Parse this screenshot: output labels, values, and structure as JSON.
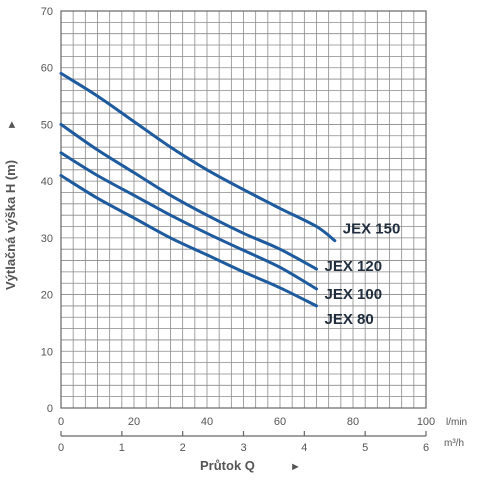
{
  "chart_data": {
    "type": "line",
    "ylabel": "Výtlačná výška H (m)",
    "xlabel": "Průtok Q",
    "y_arrow": "►",
    "x_arrow": "►",
    "ylim": [
      0,
      70
    ],
    "xlim": [
      0,
      100
    ],
    "y_ticks": [
      0,
      10,
      20,
      30,
      40,
      50,
      60,
      70
    ],
    "x_ticks_lmin": [
      0,
      20,
      40,
      60,
      80,
      100
    ],
    "x_unit_lmin": "l/min",
    "x_ticks_m3h": [
      0,
      1,
      2,
      3,
      4,
      5,
      6
    ],
    "x_unit_m3h": "m³/h",
    "grid": true,
    "series": [
      {
        "name": "JEX 150",
        "x": [
          0,
          10,
          20,
          30,
          40,
          50,
          60,
          70,
          75
        ],
        "y": [
          59,
          55,
          50.5,
          46,
          42,
          38.5,
          35.2,
          32,
          29.5
        ]
      },
      {
        "name": "JEX 120",
        "x": [
          0,
          10,
          20,
          30,
          40,
          50,
          60,
          70
        ],
        "y": [
          50,
          45.5,
          41.5,
          37.5,
          34,
          30.8,
          28,
          24.5
        ]
      },
      {
        "name": "JEX 100",
        "x": [
          0,
          10,
          20,
          30,
          40,
          50,
          60,
          70
        ],
        "y": [
          45,
          41,
          37.5,
          34,
          30.8,
          27.8,
          24.8,
          21
        ]
      },
      {
        "name": "JEX 80",
        "x": [
          0,
          10,
          20,
          30,
          40,
          50,
          60,
          70
        ],
        "y": [
          41,
          37,
          33.5,
          30,
          27,
          24,
          21.2,
          18
        ]
      }
    ]
  }
}
